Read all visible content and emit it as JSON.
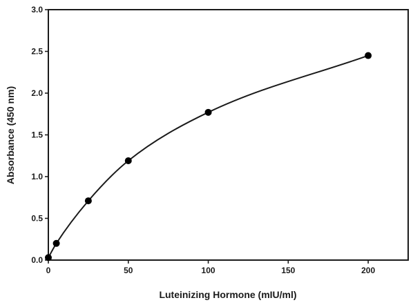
{
  "chart_data": {
    "type": "scatter",
    "xlabel": "Luteinizing Hormone (mIU/ml)",
    "ylabel": "Absorbance (450 nm)",
    "xlim": [
      0,
      225
    ],
    "ylim": [
      0,
      3.0
    ],
    "x_ticks": [
      "0",
      "50",
      "100",
      "150",
      "200"
    ],
    "y_ticks": [
      "0.0",
      "0.5",
      "1.0",
      "1.5",
      "2.0",
      "2.5",
      "3.0"
    ],
    "grid": false,
    "legend": "none",
    "series": [
      {
        "x": [
          0,
          5,
          25,
          50,
          100,
          200
        ],
        "y": [
          0.03,
          0.2,
          0.71,
          1.19,
          1.77,
          2.45
        ]
      }
    ],
    "fit_curve": "smooth"
  }
}
